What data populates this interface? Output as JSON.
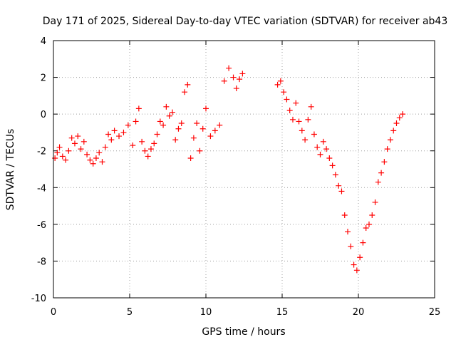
{
  "chart_data": {
    "type": "scatter",
    "title": "Day 171 of 2025, Sidereal Day-to-day VTEC variation (SDTVAR) for receiver ab43",
    "xlabel": "GPS time / hours",
    "ylabel": "SDTVAR / TECUs",
    "xlim": [
      0,
      25
    ],
    "ylim": [
      -10,
      4
    ],
    "xticks": [
      0,
      5,
      10,
      15,
      20,
      25
    ],
    "yticks": [
      -10,
      -8,
      -6,
      -4,
      -2,
      0,
      2,
      4
    ],
    "grid": true,
    "marker": "+",
    "series_color": "#ff0000",
    "series": [
      {
        "name": "SDTVAR",
        "x": [
          0.1,
          0.25,
          0.4,
          0.6,
          0.8,
          1.0,
          1.2,
          1.4,
          1.6,
          1.8,
          2.0,
          2.2,
          2.4,
          2.6,
          2.8,
          3.0,
          3.2,
          3.4,
          3.6,
          3.8,
          4.0,
          4.3,
          4.6,
          4.9,
          5.2,
          5.4,
          5.6,
          5.8,
          6.0,
          6.2,
          6.4,
          6.6,
          6.8,
          7.0,
          7.2,
          7.4,
          7.6,
          7.8,
          8.0,
          8.2,
          8.4,
          8.6,
          8.8,
          9.0,
          9.2,
          9.4,
          9.6,
          9.8,
          10.0,
          10.3,
          10.6,
          10.9,
          11.2,
          11.5,
          11.8,
          12.0,
          12.2,
          12.4,
          14.7,
          14.9,
          15.1,
          15.3,
          15.5,
          15.7,
          15.9,
          16.1,
          16.3,
          16.5,
          16.7,
          16.9,
          17.1,
          17.3,
          17.5,
          17.7,
          17.9,
          18.1,
          18.3,
          18.5,
          18.7,
          18.9,
          19.1,
          19.3,
          19.5,
          19.7,
          19.9,
          20.1,
          20.3,
          20.5,
          20.7,
          20.9,
          21.1,
          21.3,
          21.5,
          21.7,
          21.9,
          22.1,
          22.3,
          22.5,
          22.7,
          22.9
        ],
        "y": [
          -2.4,
          -2.1,
          -1.8,
          -2.3,
          -2.5,
          -2.0,
          -1.3,
          -1.6,
          -1.2,
          -1.9,
          -1.5,
          -2.2,
          -2.5,
          -2.7,
          -2.4,
          -2.1,
          -2.6,
          -1.8,
          -1.1,
          -1.4,
          -0.9,
          -1.2,
          -1.0,
          -0.6,
          -1.7,
          -0.4,
          0.3,
          -1.5,
          -2.0,
          -2.3,
          -1.9,
          -1.6,
          -1.1,
          -0.4,
          -0.6,
          0.4,
          -0.1,
          0.1,
          -1.4,
          -0.8,
          -0.5,
          1.2,
          1.6,
          -2.4,
          -1.3,
          -0.5,
          -2.0,
          -0.8,
          0.3,
          -1.2,
          -0.9,
          -0.6,
          1.8,
          2.5,
          2.0,
          1.4,
          1.9,
          2.2,
          1.6,
          1.8,
          1.2,
          0.8,
          0.2,
          -0.3,
          0.6,
          -0.4,
          -0.9,
          -1.4,
          -0.3,
          0.4,
          -1.1,
          -1.8,
          -2.2,
          -1.5,
          -1.9,
          -2.4,
          -2.8,
          -3.3,
          -3.9,
          -4.2,
          -5.5,
          -6.4,
          -7.2,
          -8.2,
          -8.5,
          -7.8,
          -7.0,
          -6.2,
          -6.0,
          -5.5,
          -4.8,
          -3.7,
          -3.2,
          -2.6,
          -1.9,
          -1.4,
          -0.9,
          -0.5,
          -0.2,
          0.0
        ]
      }
    ]
  }
}
